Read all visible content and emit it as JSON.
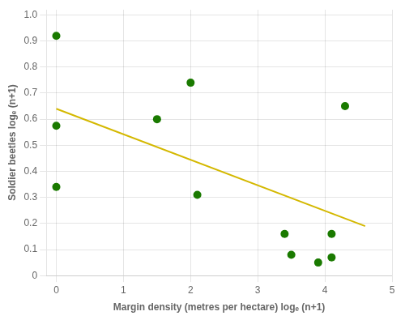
{
  "chart_data": {
    "type": "scatter",
    "xlabel": "Margin density (metres per hectare) logₑ (n+1)",
    "ylabel": "Soldier beetles logₑ (n+1)",
    "series": [
      {
        "type": "scatter",
        "color": "#1a7a00",
        "x": [
          0.0,
          0.0,
          0.0,
          1.5,
          2.0,
          2.1,
          3.4,
          3.5,
          3.9,
          4.1,
          4.1,
          4.3
        ],
        "values": [
          0.92,
          0.575,
          0.34,
          0.6,
          0.74,
          0.31,
          0.16,
          0.08,
          0.05,
          0.16,
          0.07,
          0.65
        ]
      },
      {
        "type": "line",
        "color": "#d4b800",
        "x": [
          0.0,
          4.6
        ],
        "values": [
          0.64,
          0.19
        ]
      }
    ],
    "xlim": [
      -0.15,
      5.0
    ],
    "ylim": [
      0.0,
      1.02
    ],
    "xticks": [
      0,
      1,
      2,
      3,
      4,
      5
    ],
    "yticks": [
      0,
      0.1,
      0.2,
      0.3,
      0.4,
      0.5,
      0.6,
      0.7,
      0.8,
      0.9,
      {
        "value": 1,
        "label": "1.0"
      }
    ],
    "grid": true
  }
}
